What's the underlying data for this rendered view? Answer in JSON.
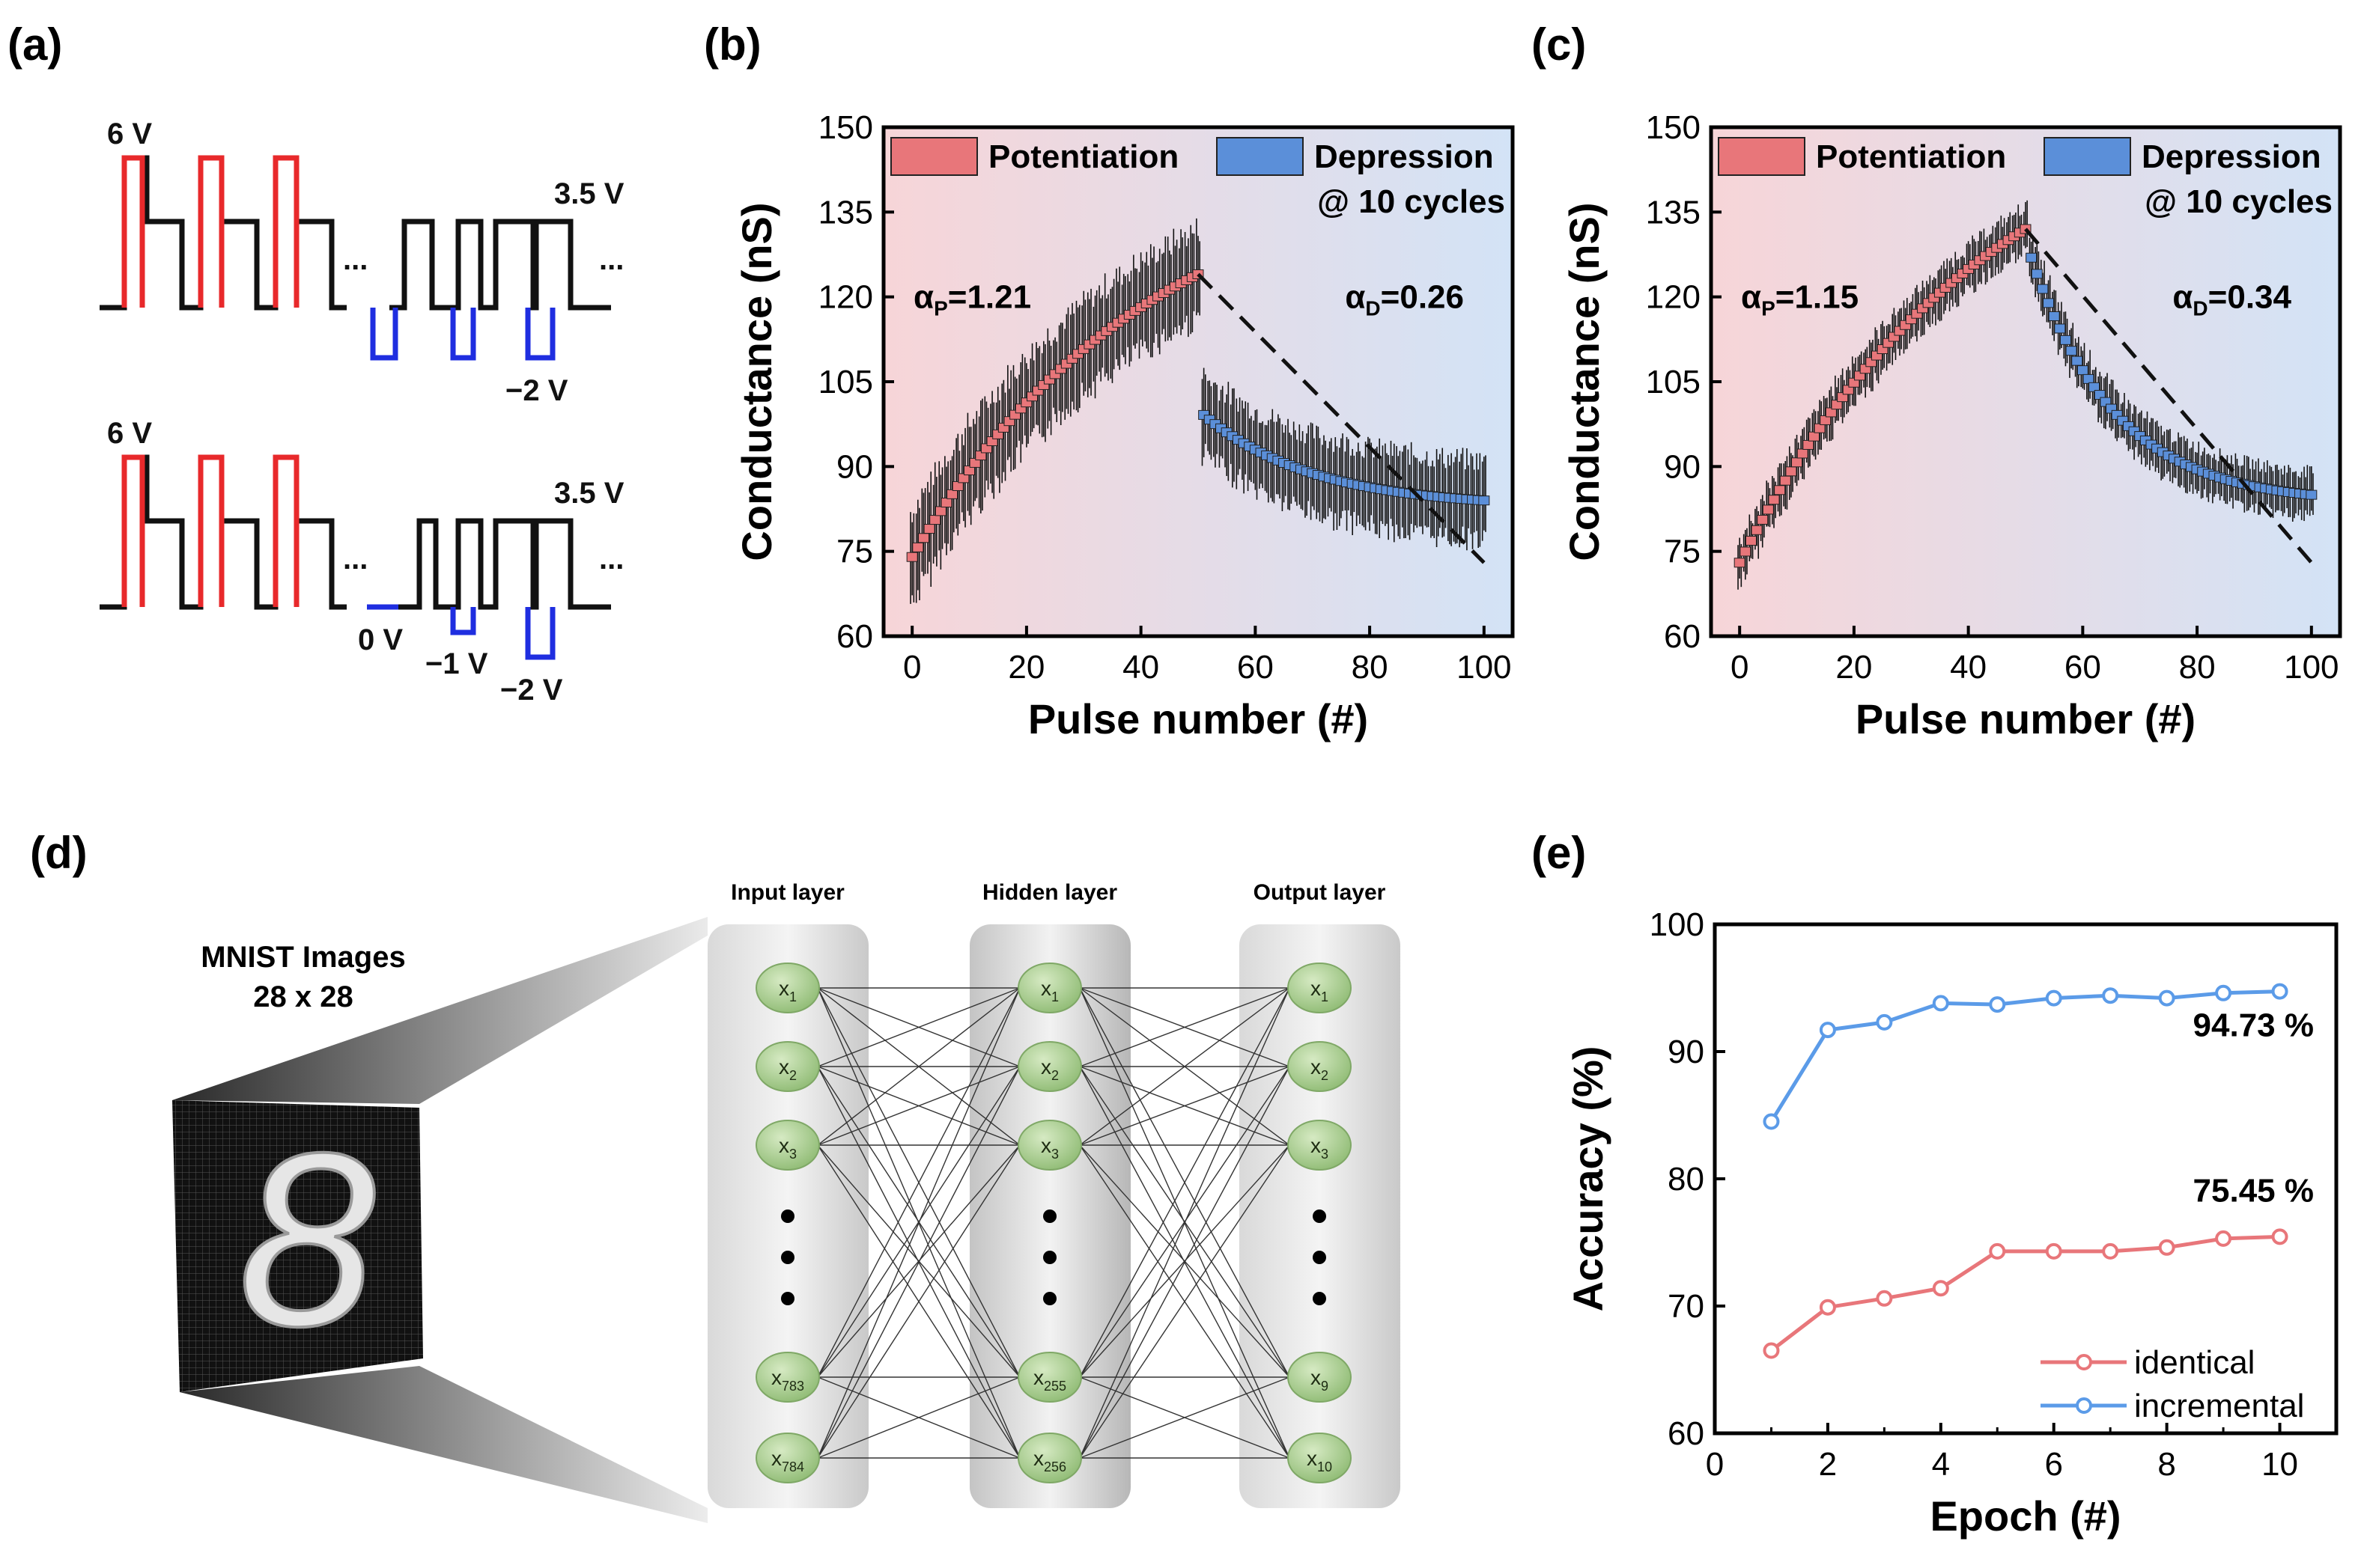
{
  "panels": {
    "a": {
      "label": "(a)"
    },
    "b": {
      "label": "(b)"
    },
    "c": {
      "label": "(c)"
    },
    "d": {
      "label": "(d)"
    },
    "e": {
      "label": "(e)"
    }
  },
  "pulse_scheme": {
    "top": {
      "set_voltage": "6 V",
      "read_voltage": "3.5 V",
      "reset_voltage": "−2 V",
      "ellipsis": "..."
    },
    "bottom": {
      "set_voltage": "6 V",
      "read_voltage": "3.5 V",
      "reset_voltages": [
        "0 V",
        "−1 V",
        "−2 V"
      ],
      "ellipsis": "..."
    },
    "colors": {
      "set": "#e8292b",
      "read": "#111111",
      "reset": "#1f2ee0"
    }
  },
  "network": {
    "mnist_title": "MNIST Images",
    "mnist_size": "28 x 28",
    "digit": "8",
    "layers": [
      {
        "title": "Input layer",
        "nodes": [
          "x1",
          "x2",
          "x3",
          "x783",
          "x784"
        ],
        "node_base": [
          "x",
          "x",
          "x",
          "x",
          "x"
        ],
        "node_sub": [
          "1",
          "2",
          "3",
          "783",
          "784"
        ]
      },
      {
        "title": "Hidden layer",
        "nodes": [
          "x1",
          "x2",
          "x3",
          "x255",
          "x256"
        ],
        "node_base": [
          "x",
          "x",
          "x",
          "x",
          "x"
        ],
        "node_sub": [
          "1",
          "2",
          "3",
          "255",
          "256"
        ]
      },
      {
        "title": "Output layer",
        "nodes": [
          "x1",
          "x2",
          "x3",
          "x9",
          "x10"
        ],
        "node_base": [
          "x",
          "x",
          "x",
          "x",
          "x"
        ],
        "node_sub": [
          "1",
          "2",
          "3",
          "9",
          "10"
        ]
      }
    ]
  },
  "chart_data": [
    {
      "id": "b",
      "type": "line",
      "xlabel": "Pulse number (#)",
      "ylabel": "Conductance (nS)",
      "xlim": [
        -5,
        105
      ],
      "ylim": [
        60,
        150
      ],
      "xticks": [
        0,
        20,
        40,
        60,
        80,
        100
      ],
      "yticks": [
        60,
        75,
        90,
        105,
        120,
        135,
        150
      ],
      "legend": [
        "Potentiation",
        "Depression"
      ],
      "legend_note": "@ 10 cycles",
      "legend_placement": "top",
      "colors": {
        "potentiation": "#e8767a",
        "depression": "#5b8fd9"
      },
      "alpha_p_label": "α",
      "alpha_p_sub": "P",
      "alpha_p_value": "=1.21",
      "alpha_d_label": "α",
      "alpha_d_sub": "D",
      "alpha_d_value": "=0.26",
      "potentiation": {
        "start": 74,
        "end": 124,
        "alpha": 1.21,
        "n": 50,
        "error_bar": 8
      },
      "depression": {
        "start": 100,
        "end": 84,
        "alpha": 0.26,
        "n": 50,
        "error_bar": 7
      },
      "reference_line": {
        "x": [
          50,
          100
        ],
        "y": [
          124,
          73
        ]
      }
    },
    {
      "id": "c",
      "type": "line",
      "xlabel": "Pulse number (#)",
      "ylabel": "Conductance (nS)",
      "xlim": [
        -5,
        105
      ],
      "ylim": [
        60,
        150
      ],
      "xticks": [
        0,
        20,
        40,
        60,
        80,
        100
      ],
      "yticks": [
        60,
        75,
        90,
        105,
        120,
        135,
        150
      ],
      "legend": [
        "Potentiation",
        "Depression"
      ],
      "legend_note": "@ 10 cycles",
      "legend_placement": "top",
      "colors": {
        "potentiation": "#e8767a",
        "depression": "#5b8fd9"
      },
      "alpha_p_label": "α",
      "alpha_p_sub": "P",
      "alpha_p_value": "=1.15",
      "alpha_d_label": "α",
      "alpha_d_sub": "D",
      "alpha_d_value": "=0.34",
      "potentiation": {
        "start": 73,
        "end": 132,
        "alpha": 1.15,
        "n": 50,
        "error_bar": 4
      },
      "depression": {
        "start": 130,
        "end": 85,
        "alpha": 0.34,
        "n": 50,
        "error_bar": 4
      },
      "reference_line": {
        "x": [
          50,
          100
        ],
        "y": [
          132,
          73
        ]
      }
    },
    {
      "id": "e",
      "type": "line",
      "xlabel": "Epoch (#)",
      "ylabel": "Accuracy (%)",
      "xlim": [
        0,
        11
      ],
      "ylim": [
        60,
        100
      ],
      "xticks": [
        0,
        2,
        4,
        6,
        8,
        10
      ],
      "yticks": [
        60,
        70,
        80,
        90,
        100
      ],
      "legend_placement": "bottom-right",
      "x": [
        1,
        2,
        3,
        4,
        5,
        6,
        7,
        8,
        9,
        10
      ],
      "series": [
        {
          "name": "identical",
          "color": "#e8767a",
          "values": [
            66.5,
            69.9,
            70.6,
            71.4,
            74.3,
            74.3,
            74.3,
            74.6,
            75.3,
            75.45
          ]
        },
        {
          "name": "incremental",
          "color": "#5b9be8",
          "values": [
            84.5,
            91.7,
            92.3,
            93.8,
            93.7,
            94.2,
            94.4,
            94.2,
            94.6,
            94.73
          ]
        }
      ],
      "annotations": [
        "94.73 %",
        "75.45 %"
      ]
    }
  ]
}
